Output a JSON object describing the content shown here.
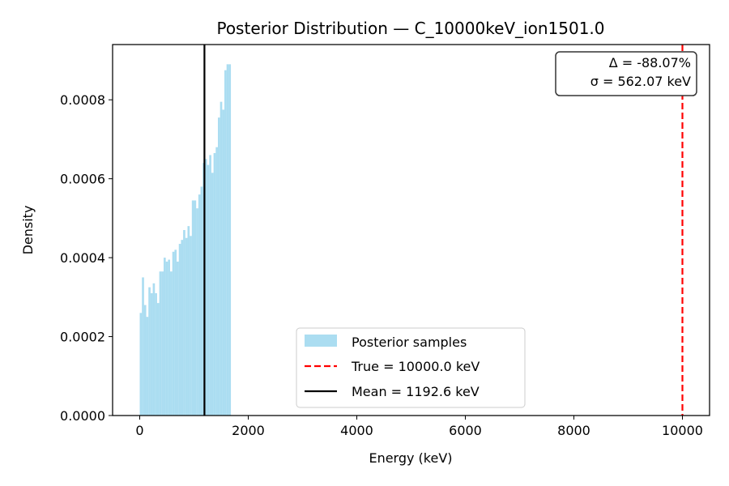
{
  "chart_data": {
    "type": "bar",
    "title": "Posterior Distribution — C_10000keV_ion1501.0",
    "xlabel": "Energy (keV)",
    "ylabel": "Density",
    "xlim": [
      -500,
      10500
    ],
    "ylim": [
      0,
      0.00094
    ],
    "x_ticks": [
      0,
      2000,
      4000,
      6000,
      8000,
      10000
    ],
    "x_tick_labels": [
      "0",
      "2000",
      "4000",
      "6000",
      "8000",
      "10000"
    ],
    "y_ticks": [
      0,
      0.0002,
      0.0004,
      0.0006,
      0.0008
    ],
    "y_tick_labels": [
      "0.0000",
      "0.0002",
      "0.0004",
      "0.0006",
      "0.0008"
    ],
    "grid": false,
    "histogram": {
      "name": "Posterior samples",
      "color": "#87CEEB",
      "opacity": 0.7,
      "bin_width": 40,
      "bin_start": 0,
      "densities": [
        0.00026,
        0.00035,
        0.00028,
        0.00025,
        0.000325,
        0.00031,
        0.000335,
        0.00031,
        0.000285,
        0.000365,
        0.000365,
        0.0004,
        0.00039,
        0.000395,
        0.000365,
        0.000415,
        0.00042,
        0.00039,
        0.000435,
        0.000445,
        0.00047,
        0.00045,
        0.00048,
        0.000455,
        0.000545,
        0.000545,
        0.000525,
        0.00056,
        0.00058,
        0.00064,
        0.00065,
        0.000635,
        0.00066,
        0.000615,
        0.000665,
        0.00068,
        0.000755,
        0.000795,
        0.000775,
        0.000875,
        0.00089,
        0.00089
      ]
    },
    "lines": [
      {
        "name": "True = 10000.0 keV",
        "x": 10000,
        "color": "#FF0000",
        "style": "dashed"
      },
      {
        "name": "Mean = 1192.6 keV",
        "x": 1192.6,
        "color": "#000000",
        "style": "solid"
      }
    ],
    "legend": {
      "placement": "lower-center",
      "entries": [
        "Posterior samples",
        "True = 10000.0 keV",
        "Mean = 1192.6 keV"
      ]
    },
    "annotation": {
      "placement": "top-right",
      "lines": [
        "Δ = -88.07%",
        "σ = 562.07 keV"
      ]
    }
  }
}
